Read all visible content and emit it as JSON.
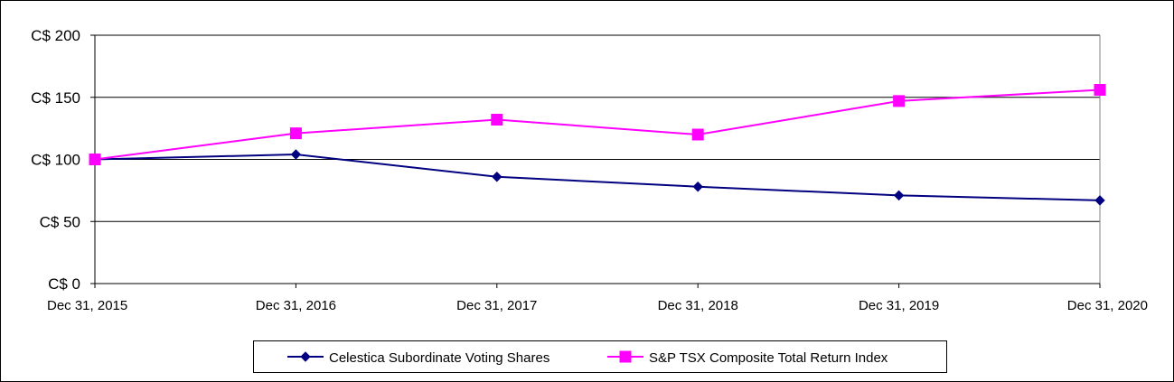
{
  "chart_data": {
    "type": "line",
    "title": "",
    "xlabel": "",
    "ylabel": "",
    "categories": [
      "Dec 31, 2015",
      "Dec 31, 2016",
      "Dec 31, 2017",
      "Dec 31, 2018",
      "Dec 31, 2019",
      "Dec 31, 2020"
    ],
    "y_ticks": [
      0,
      50,
      100,
      150,
      200
    ],
    "y_tick_labels": [
      "C$ 0",
      "C$ 50",
      "C$ 100",
      "C$ 150",
      "C$ 200"
    ],
    "ylim": [
      0,
      200
    ],
    "grid": true,
    "legend_position": "bottom",
    "series": [
      {
        "name": "Celestica Subordinate Voting Shares",
        "values": [
          100,
          104,
          86,
          78,
          71,
          67
        ],
        "color": "#000080",
        "marker": "diamond"
      },
      {
        "name": "S&P TSX Composite Total Return Index",
        "values": [
          100,
          121,
          132,
          120,
          147,
          156
        ],
        "color": "#FF00FF",
        "marker": "square"
      }
    ]
  }
}
